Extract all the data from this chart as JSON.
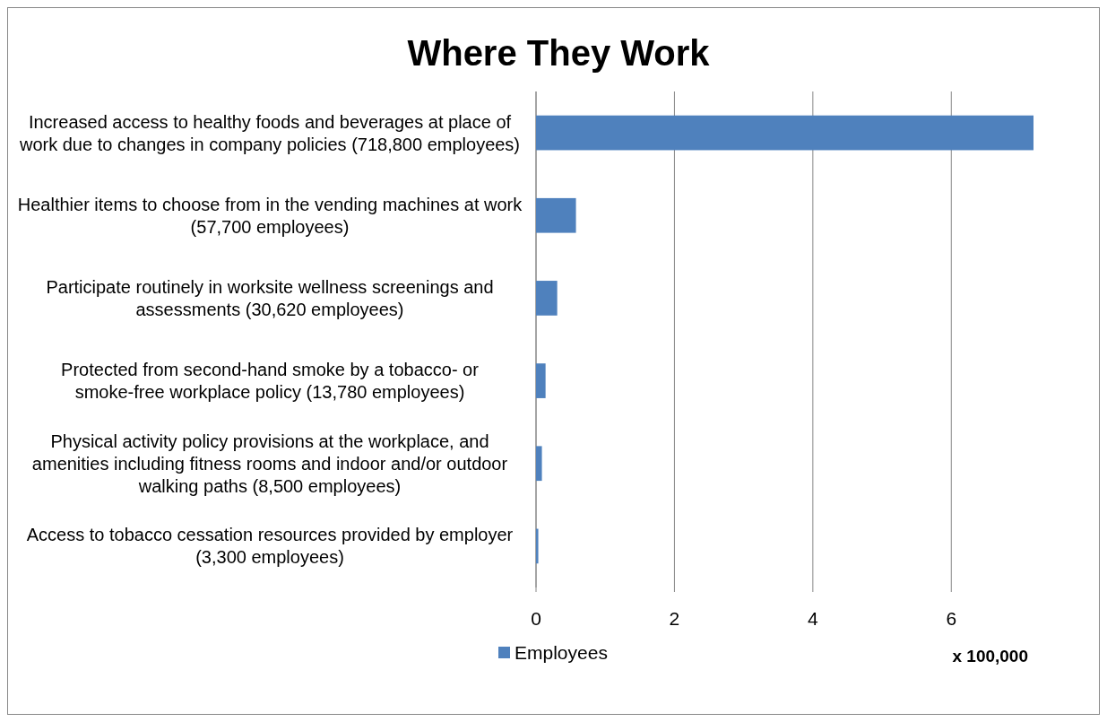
{
  "chart_data": {
    "type": "bar",
    "orientation": "horizontal",
    "title": "Where They Work",
    "xlabel": "x 100,000",
    "categories": [
      "Increased access to healthy foods and beverages at  place of work due to changes in company policies (718,800 employees)",
      "Healthier items to choose from in the vending machines at work (57,700 employees)",
      "Participate routinely in worksite wellness screenings and assessments (30,620 employees)",
      "Protected from second-hand smoke by a tobacco- or smoke-free workplace policy (13,780 employees)",
      "Physical activity policy provisions at the workplace, and amenities including fitness rooms and indoor and/or outdoor walking paths (8,500 employees)",
      "Access to tobacco cessation resources provided by employer (3,300 employees)"
    ],
    "series": [
      {
        "name": "Employees",
        "color": "#4f81bd",
        "values": [
          7.188,
          0.577,
          0.3062,
          0.1378,
          0.085,
          0.033
        ]
      }
    ],
    "xlim": [
      0,
      7.188
    ],
    "xticks": [
      0,
      2,
      4,
      6
    ],
    "grid": "x",
    "legend": "bottom"
  }
}
